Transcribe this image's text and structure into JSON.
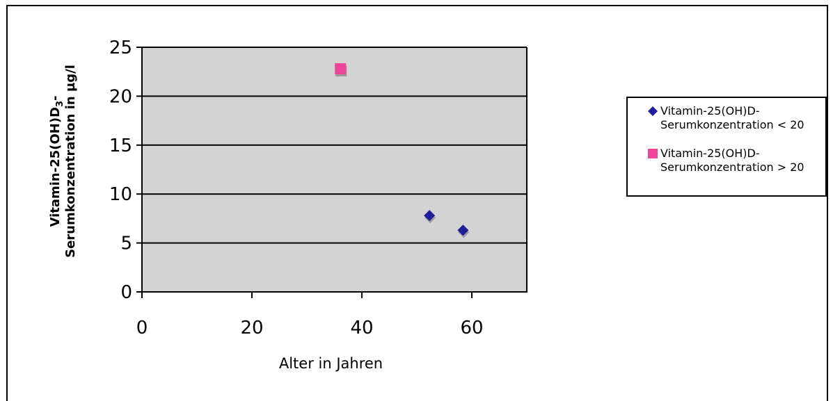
{
  "chart_data": {
    "type": "scatter",
    "title": "",
    "xlabel": "Alter in Jahren",
    "ylabel_line1": "Vitamin-25(OH)D",
    "ylabel_subscript": "3",
    "ylabel_line1_suffix": "-",
    "ylabel_line2": "Serumkonzentration in µg/l",
    "xlim": [
      0,
      70
    ],
    "ylim": [
      0,
      25
    ],
    "x_ticks": [
      "0",
      "20",
      "40",
      "60"
    ],
    "y_ticks": [
      "0",
      "5",
      "10",
      "15",
      "20",
      "25"
    ],
    "grid": "horizontal",
    "plot_background": "#d3d3d3",
    "legend_position": "right",
    "series": [
      {
        "name": "Vitamin-25(OH)D-Serumkonzentration < 20",
        "name_line1": "Vitamin-25(OH)D-",
        "name_line2": "Serumkonzentration < 20",
        "marker": "diamond",
        "color": "#1f1f9a",
        "points": [
          {
            "x": 52.3,
            "y": 7.8
          },
          {
            "x": 58.4,
            "y": 6.3
          }
        ]
      },
      {
        "name": "Vitamin-25(OH)D-Serumkonzentration > 20",
        "name_line1": "Vitamin-25(OH)D-",
        "name_line2": "Serumkonzentration > 20",
        "marker": "square",
        "color": "#f0449a",
        "points": [
          {
            "x": 36.1,
            "y": 22.8
          }
        ]
      }
    ]
  }
}
